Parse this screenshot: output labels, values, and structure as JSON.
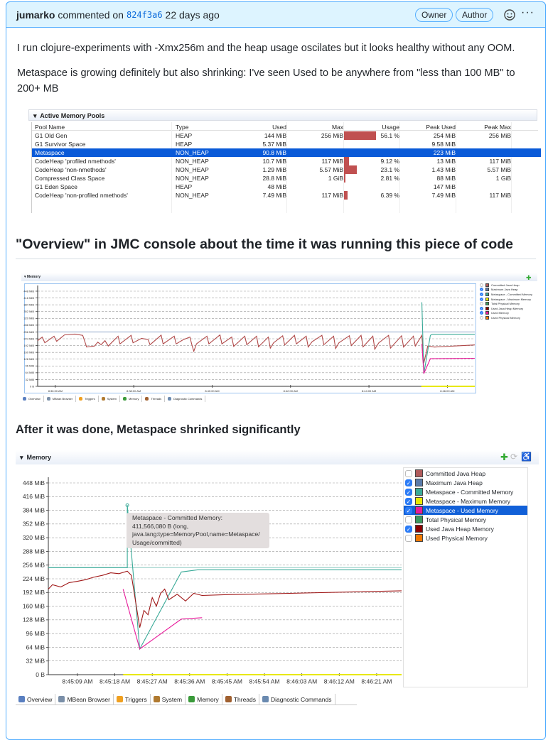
{
  "comment": {
    "author": "jumarko",
    "action": "commented on",
    "commit": "824f3a6",
    "time": "22 days ago",
    "badges": [
      "Owner",
      "Author"
    ],
    "reaction_icon": "smiley-icon",
    "menu_icon": "kebab-icon",
    "paragraphs": [
      "I run clojure-experiments with -Xmx256m and the heap usage oscilates but it looks healthy without any OOM.",
      "Metaspace is growing definitely but also shrinking: I've seen Used to be anywhere from \"less than 100 MB\" to 200+ MB"
    ],
    "heading1": "\"Overview\" in JMC console about the time it was running this piece of code",
    "heading2": "After it was done, Metaspace shrinked significantly"
  },
  "pools": {
    "title": "Active Memory Pools",
    "columns": [
      "Pool Name",
      "Type",
      "Used",
      "Max",
      "Usage",
      "Peak Used",
      "Peak Max"
    ],
    "rows": [
      {
        "name": "G1 Old Gen",
        "type": "HEAP",
        "used": "144 MiB",
        "max": "256 MiB",
        "usage": "56.1 %",
        "usage_pct": 56.1,
        "peak_used": "254 MiB",
        "peak_max": "256 MiB"
      },
      {
        "name": "G1 Survivor Space",
        "type": "HEAP",
        "used": "5.37 MiB",
        "max": "",
        "usage": "",
        "usage_pct": 0,
        "peak_used": "9.58 MiB",
        "peak_max": ""
      },
      {
        "name": "Metaspace",
        "type": "NON_HEAP",
        "used": "90.8 MiB",
        "max": "",
        "usage": "",
        "usage_pct": 0,
        "peak_used": "223 MiB",
        "peak_max": "",
        "selected": true
      },
      {
        "name": "CodeHeap 'profiled nmethods'",
        "type": "NON_HEAP",
        "used": "10.7 MiB",
        "max": "117 MiB",
        "usage": "9.12 %",
        "usage_pct": 9.12,
        "peak_used": "13 MiB",
        "peak_max": "117 MiB"
      },
      {
        "name": "CodeHeap 'non-nmethods'",
        "type": "NON_HEAP",
        "used": "1.29 MiB",
        "max": "5.57 MiB",
        "usage": "23.1 %",
        "usage_pct": 23.1,
        "peak_used": "1.43 MiB",
        "peak_max": "5.57 MiB"
      },
      {
        "name": "Compressed Class Space",
        "type": "NON_HEAP",
        "used": "28.8 MiB",
        "max": "1 GiB",
        "usage": "2.81 %",
        "usage_pct": 2.81,
        "peak_used": "88 MiB",
        "peak_max": "1 GiB"
      },
      {
        "name": "G1 Eden Space",
        "type": "HEAP",
        "used": "48 MiB",
        "max": "",
        "usage": "",
        "usage_pct": 0,
        "peak_used": "147 MiB",
        "peak_max": ""
      },
      {
        "name": "CodeHeap 'non-profiled nmethods'",
        "type": "NON_HEAP",
        "used": "7.49 MiB",
        "max": "117 MiB",
        "usage": "6.39 %",
        "usage_pct": 6.39,
        "peak_used": "7.49 MiB",
        "peak_max": "117 MiB"
      }
    ]
  },
  "tabs": [
    "Overview",
    "MBean Browser",
    "Triggers",
    "System",
    "Memory",
    "Threads",
    "Diagnostic Commands"
  ],
  "tab_colors": [
    "#5a7fc0",
    "#7a8fa8",
    "#f0a020",
    "#b07a30",
    "#3a9a3a",
    "#a06030",
    "#6a8ab0"
  ],
  "chart_data": [
    {
      "type": "line",
      "title": "Memory",
      "ylim": [
        0,
        448
      ],
      "yticks": [
        "0 B",
        "32 MiB",
        "64 MiB",
        "96 MiB",
        "128 MiB",
        "160 MiB",
        "192 MiB",
        "224 MiB",
        "256 MiB",
        "288 MiB",
        "320 MiB",
        "352 MiB",
        "384 MiB",
        "416 MiB",
        "448 MiB"
      ],
      "xlim": [
        "8:35:33",
        "8:46:42"
      ],
      "xticks": [
        "8:36:00 AM",
        "8:38:00 AM",
        "8:40:00 AM",
        "8:42:00 AM",
        "8:44:00 AM",
        "8:46:00 AM"
      ],
      "grid": true,
      "legend_position": "right",
      "legend": [
        {
          "name": "Committed Java Heap",
          "color": "#b05a5a",
          "checked": false
        },
        {
          "name": "Maximum Java Heap",
          "color": "#5a7aa8",
          "checked": true
        },
        {
          "name": "Metaspace - Committed Memory",
          "color": "#3aaa98",
          "checked": true
        },
        {
          "name": "Metaspace - Maximum Memory",
          "color": "#e8e800",
          "checked": true
        },
        {
          "name": "Total Physical Memory",
          "color": "#3a9a60",
          "checked": false
        },
        {
          "name": "Used Java Heap Memory",
          "color": "#8a0000",
          "checked": true
        },
        {
          "name": "Used Memory",
          "color": "#e81a9a",
          "checked": true
        },
        {
          "name": "Used Physical Memory",
          "color": "#f07800",
          "checked": false
        }
      ],
      "series": [
        {
          "name": "Used Java Heap Memory",
          "color": "#b04848",
          "points": [
            [
              "8:35:33",
              215
            ],
            [
              "8:35:40",
              232
            ],
            [
              "8:35:44",
              205
            ],
            [
              "8:35:58",
              236
            ],
            [
              "8:36:02",
              212
            ],
            [
              "8:36:14",
              242
            ],
            [
              "8:36:30",
              246
            ],
            [
              "8:36:42",
              240
            ],
            [
              "8:36:48",
              185
            ],
            [
              "8:37:00",
              190
            ],
            [
              "8:37:05",
              208
            ],
            [
              "8:37:10",
              196
            ],
            [
              "8:37:16",
              215
            ],
            [
              "8:37:21",
              190
            ],
            [
              "8:37:36",
              236
            ],
            [
              "8:37:39",
              200
            ],
            [
              "8:37:56",
              240
            ],
            [
              "8:37:59",
              205
            ],
            [
              "8:38:12",
              226
            ],
            [
              "8:38:22",
              220
            ],
            [
              "8:38:25",
              196
            ],
            [
              "8:38:42",
              241
            ],
            [
              "8:38:45",
              200
            ],
            [
              "8:39:02",
              236
            ],
            [
              "8:39:05",
              200
            ],
            [
              "8:39:16",
              220
            ],
            [
              "8:39:26",
              232
            ],
            [
              "8:39:29",
              195
            ],
            [
              "8:39:32",
              165
            ],
            [
              "8:39:36",
              200
            ],
            [
              "8:39:52",
              236
            ],
            [
              "8:39:55",
              200
            ],
            [
              "8:40:12",
              242
            ],
            [
              "8:40:15",
              200
            ],
            [
              "8:40:30",
              232
            ],
            [
              "8:40:33",
              188
            ],
            [
              "8:40:50",
              236
            ],
            [
              "8:40:53",
              196
            ],
            [
              "8:41:08",
              236
            ],
            [
              "8:41:11",
              186
            ],
            [
              "8:41:26",
              232
            ],
            [
              "8:41:29",
              180
            ],
            [
              "8:41:34",
              205
            ],
            [
              "8:41:48",
              238
            ],
            [
              "8:41:51",
              195
            ],
            [
              "8:42:06",
              240
            ],
            [
              "8:42:09",
              200
            ],
            [
              "8:42:24",
              236
            ],
            [
              "8:42:27",
              185
            ],
            [
              "8:42:33",
              210
            ],
            [
              "8:42:48",
              240
            ],
            [
              "8:42:51",
              196
            ],
            [
              "8:43:06",
              236
            ],
            [
              "8:43:09",
              178
            ],
            [
              "8:43:14",
              205
            ],
            [
              "8:43:30",
              238
            ],
            [
              "8:43:33",
              192
            ],
            [
              "8:43:48",
              240
            ],
            [
              "8:43:51",
              186
            ],
            [
              "8:44:06",
              236
            ],
            [
              "8:44:09",
              175
            ],
            [
              "8:44:15",
              205
            ],
            [
              "8:44:30",
              240
            ],
            [
              "8:44:33",
              180
            ],
            [
              "8:44:50",
              238
            ],
            [
              "8:44:53",
              185
            ],
            [
              "8:45:08",
              236
            ],
            [
              "8:45:11",
              190
            ],
            [
              "8:45:21",
              240
            ],
            [
              "8:45:24",
              110
            ],
            [
              "8:45:30",
              190
            ],
            [
              "8:45:40",
              185
            ],
            [
              "8:46:42",
              195
            ]
          ]
        },
        {
          "name": "Maximum Java Heap",
          "color": "#9ab0d0",
          "points": [
            [
              "8:35:33",
              256
            ],
            [
              "8:46:42",
              256
            ]
          ]
        },
        {
          "name": "Metaspace - Committed Memory",
          "color": "#3aaa98",
          "points": [
            [
              "8:45:21",
              396
            ],
            [
              "8:45:24",
              60
            ],
            [
              "8:45:34",
              240
            ],
            [
              "8:45:37",
              245
            ],
            [
              "8:46:42",
              245
            ]
          ]
        },
        {
          "name": "Used Memory",
          "color": "#e81a9a",
          "points": [
            [
              "8:45:21",
              200
            ],
            [
              "8:45:24",
              60
            ],
            [
              "8:45:34",
              130
            ],
            [
              "8:46:42",
              132
            ]
          ]
        },
        {
          "name": "Metaspace - Maximum Memory",
          "color": "#e8e800",
          "points": [
            [
              "8:45:20",
              0
            ],
            [
              "8:46:42",
              0
            ]
          ]
        }
      ]
    },
    {
      "type": "line",
      "title": "Memory",
      "ylim": [
        0,
        448
      ],
      "yticks": [
        "0 B",
        "32 MiB",
        "64 MiB",
        "96 MiB",
        "128 MiB",
        "160 MiB",
        "192 MiB",
        "224 MiB",
        "256 MiB",
        "288 MiB",
        "320 MiB",
        "352 MiB",
        "384 MiB",
        "416 MiB",
        "448 MiB"
      ],
      "xlim": [
        "8:45:02",
        "8:46:27"
      ],
      "xticks": [
        "8:45:09 AM",
        "8:45:18 AM",
        "8:45:27 AM",
        "8:45:36 AM",
        "8:45:45 AM",
        "8:45:54 AM",
        "8:46:03 AM",
        "8:46:12 AM",
        "8:46:21 AM"
      ],
      "grid": true,
      "legend_position": "right",
      "legend": [
        {
          "name": "Committed Java Heap",
          "color": "#b05a5a",
          "checked": false
        },
        {
          "name": "Maximum Java Heap",
          "color": "#5a7aa8",
          "checked": true
        },
        {
          "name": "Metaspace - Committed Memory",
          "color": "#3aaa98",
          "checked": true
        },
        {
          "name": "Metaspace - Maximum Memory",
          "color": "#e8e800",
          "checked": true
        },
        {
          "name": "Metaspace - Used Memory",
          "color": "#e81a9a",
          "checked": true,
          "selected": true
        },
        {
          "name": "Total Physical Memory",
          "color": "#3a9a60",
          "checked": false
        },
        {
          "name": "Used Java Heap Memory",
          "color": "#8a0000",
          "checked": true
        },
        {
          "name": "Used Physical Memory",
          "color": "#f07800",
          "checked": false
        }
      ],
      "tooltip": [
        "Metaspace - Committed Memory:",
        "411,566,080 B (long,",
        "java.lang:type=MemoryPool,name=Metaspace/",
        "Usage/committed)"
      ],
      "series": [
        {
          "name": "Maximum Java Heap",
          "color": "#9ad0c8",
          "points": [
            [
              "8:45:02",
              250
            ],
            [
              "8:46:27",
              250
            ]
          ]
        },
        {
          "name": "Metaspace - Committed Memory",
          "color": "#3aaa98",
          "points": [
            [
              "8:45:02",
              250
            ],
            [
              "8:45:21",
              250
            ],
            [
              "8:45:21",
              396
            ],
            [
              "8:45:24",
              60
            ],
            [
              "8:45:34",
              240
            ],
            [
              "8:45:38",
              245
            ],
            [
              "8:46:27",
              245
            ]
          ]
        },
        {
          "name": "Metaspace - Used Memory",
          "color": "#e81a9a",
          "points": [
            [
              "8:45:20",
              200
            ],
            [
              "8:45:24",
              60
            ],
            [
              "8:45:34",
              130
            ],
            [
              "8:45:39",
              133
            ]
          ]
        },
        {
          "name": "Used Java Heap Memory",
          "color": "#a01818",
          "points": [
            [
              "8:45:02",
              200
            ],
            [
              "8:45:03",
              210
            ],
            [
              "8:45:05",
              205
            ],
            [
              "8:45:07",
              215
            ],
            [
              "8:45:09",
              218
            ],
            [
              "8:45:11",
              222
            ],
            [
              "8:45:13",
              228
            ],
            [
              "8:45:15",
              232
            ],
            [
              "8:45:17",
              238
            ],
            [
              "8:45:19",
              236
            ],
            [
              "8:45:21",
              242
            ],
            [
              "8:45:22",
              232
            ],
            [
              "8:45:24",
              110
            ],
            [
              "8:45:25",
              150
            ],
            [
              "8:45:26",
              140
            ],
            [
              "8:45:27",
              180
            ],
            [
              "8:45:28",
              160
            ],
            [
              "8:45:29",
              190
            ],
            [
              "8:45:30",
              200
            ],
            [
              "8:45:31",
              175
            ],
            [
              "8:45:33",
              188
            ],
            [
              "8:45:35",
              172
            ],
            [
              "8:45:37",
              190
            ],
            [
              "8:45:39",
              185
            ],
            [
              "8:45:45",
              187
            ],
            [
              "8:46:00",
              190
            ],
            [
              "8:46:27",
              196
            ]
          ]
        },
        {
          "name": "Metaspace - Maximum Memory",
          "color": "#e8e800",
          "points": [
            [
              "8:45:20",
              0
            ],
            [
              "8:46:27",
              0
            ]
          ]
        }
      ]
    }
  ]
}
